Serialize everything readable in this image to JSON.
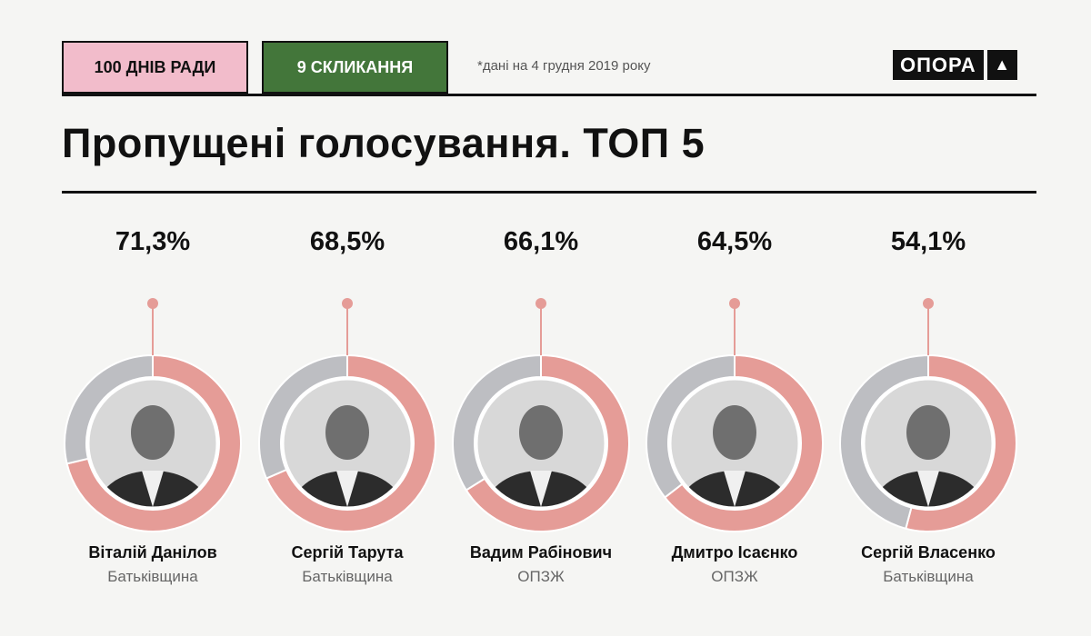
{
  "header": {
    "tag1": "100 ДНІВ РАДИ",
    "tag2": "9 СКЛИКАННЯ",
    "note": "*дані на 4 грудня 2019 року",
    "logo": "ОПОРА",
    "logo_icon": "triangle-up-icon",
    "title": "Пропущені голосування. ТОП 5"
  },
  "colors": {
    "missed": "#e59c97",
    "rest": "#bdbec2",
    "tag1": "#f2bccb",
    "tag2": "#43763a"
  },
  "chart_data": {
    "type": "pie",
    "title": "Пропущені голосування. ТОП 5",
    "items": [
      {
        "label": "71,3%",
        "value": 71.3,
        "name": "Віталій Данілов",
        "party": "Батьківщина"
      },
      {
        "label": "68,5%",
        "value": 68.5,
        "name": "Сергій Тарута",
        "party": "Батьківщина"
      },
      {
        "label": "66,1%",
        "value": 66.1,
        "name": "Вадим Рабінович",
        "party": "ОПЗЖ"
      },
      {
        "label": "64,5%",
        "value": 64.5,
        "name": "Дмитро Ісаєнко",
        "party": "ОПЗЖ"
      },
      {
        "label": "54,1%",
        "value": 54.1,
        "name": "Сергій Власенко",
        "party": "Батьківщина"
      }
    ]
  }
}
